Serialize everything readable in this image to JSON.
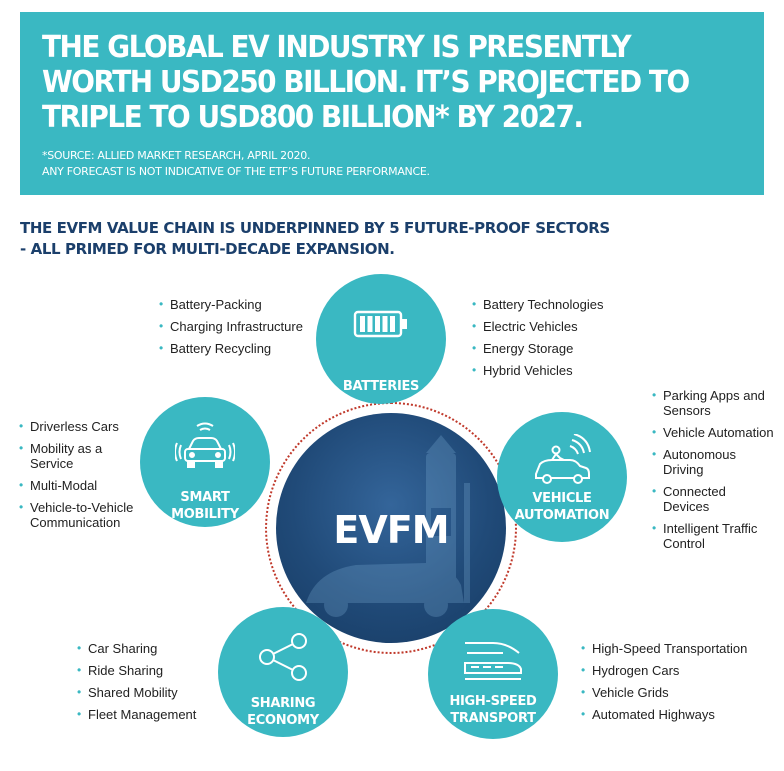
{
  "banner": {
    "headline": "THE GLOBAL EV INDUSTRY IS PRESENTLY WORTH USD250 BILLION. IT’S PROJECTED TO TRIPLE TO USD800 BILLION* BY 2027.",
    "source_line1": "*SOURCE: ALLIED MARKET RESEARCH, APRIL 2020.",
    "source_line2": "ANY FORECAST IS NOT INDICATIVE OF THE ETF’S FUTURE PERFORMANCE."
  },
  "subheading": {
    "line1": "THE EVFM VALUE CHAIN IS UNDERPINNED BY 5 FUTURE-PROOF SECTORS",
    "line2": "- ALL PRIMED FOR MULTI-DECADE EXPANSION."
  },
  "center": {
    "label": "EVFM"
  },
  "colors": {
    "teal": "#3ab8c2",
    "navy": "#1b3f6b",
    "ring": "#c0392b",
    "center": "#204a78"
  },
  "sectors": {
    "batteries": {
      "label_line1": "BATTERIES",
      "icon": "battery-icon",
      "left_items": [
        "Battery-Packing",
        "Charging Infrastructure",
        "Battery Recycling"
      ],
      "right_items": [
        "Battery Technologies",
        "Electric Vehicles",
        "Energy Storage",
        "Hybrid Vehicles"
      ]
    },
    "vehicle_automation": {
      "label_line1": "VEHICLE",
      "label_line2": "AUTOMATION",
      "icon": "autonomous-car-icon",
      "items": [
        "Parking Apps and Sensors",
        "Vehicle Automation",
        "Autonomous Driving",
        "Connected Devices",
        "Intelligent Traffic Control"
      ]
    },
    "smart_mobility": {
      "label_line1": "SMART",
      "label_line2": "MOBILITY",
      "icon": "connected-car-icon",
      "items": [
        "Driverless Cars",
        "Mobility as a Service",
        "Multi-Modal",
        "Vehicle-to-Vehicle Communication"
      ]
    },
    "sharing_economy": {
      "label_line1": "SHARING",
      "label_line2": "ECONOMY",
      "icon": "share-network-icon",
      "items": [
        "Car Sharing",
        "Ride Sharing",
        "Shared Mobility",
        "Fleet Management"
      ]
    },
    "high_speed_transport": {
      "label_line1": "HIGH-SPEED",
      "label_line2": "TRANSPORT",
      "icon": "bullet-train-icon",
      "items": [
        "High-Speed Transportation",
        "Hydrogen Cars",
        "Vehicle Grids",
        "Automated Highways"
      ]
    }
  }
}
